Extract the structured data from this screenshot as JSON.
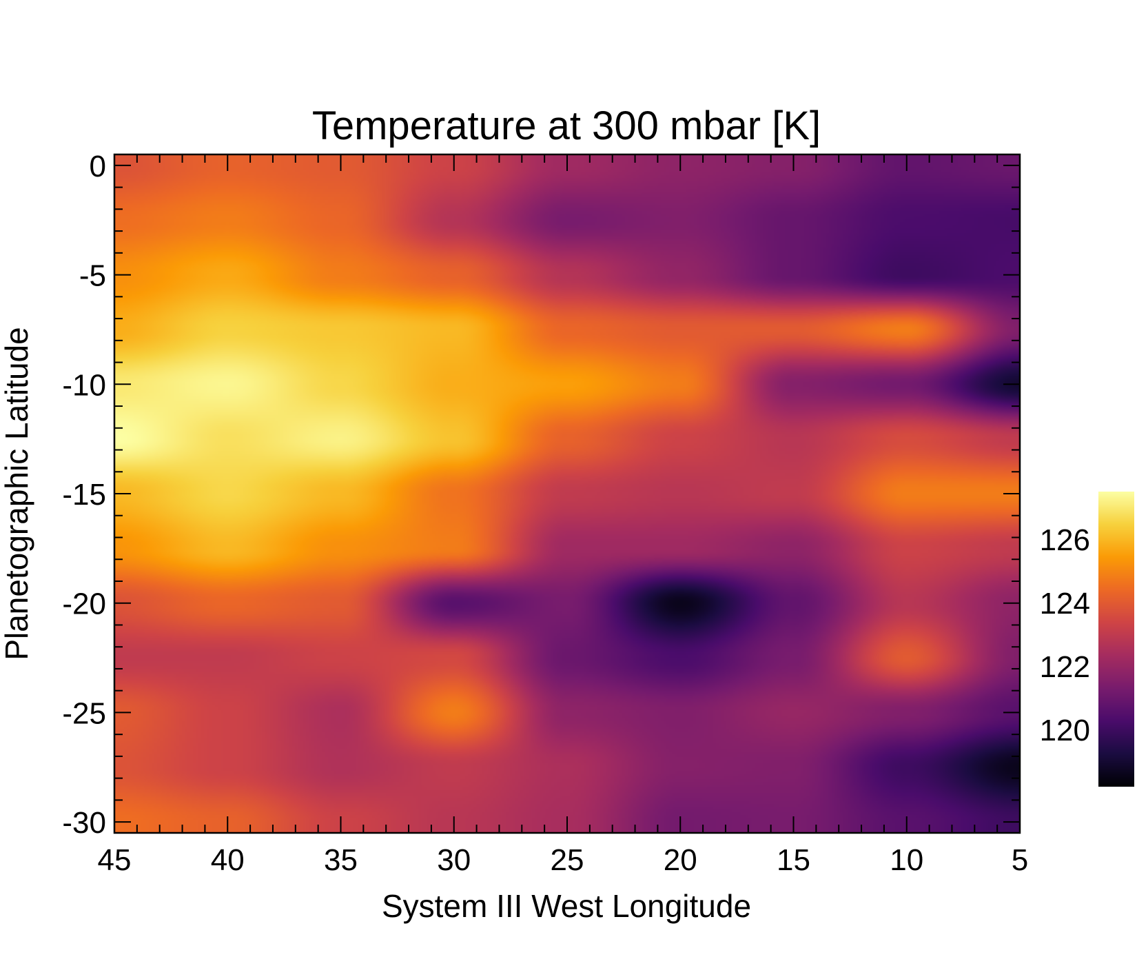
{
  "chart_data": {
    "type": "heatmap",
    "title": "Temperature at 300 mbar [K]",
    "xlabel": "System III West Longitude",
    "ylabel": "Planetographic Latitude",
    "xlim": [
      45,
      5
    ],
    "ylim": [
      -30.5,
      0.5
    ],
    "x_ticks": [
      45,
      40,
      35,
      30,
      25,
      20,
      15,
      10,
      5
    ],
    "y_ticks": [
      0,
      -5,
      -10,
      -15,
      -20,
      -25,
      -30
    ],
    "x_tick_labels": [
      "45",
      "40",
      "35",
      "30",
      "25",
      "20",
      "15",
      "10",
      "5"
    ],
    "y_tick_labels": [
      "0",
      "-5",
      "-10",
      "-15",
      "-20",
      "-25",
      "-30"
    ],
    "colorbar": {
      "range": [
        118.2,
        127.5
      ],
      "ticks": [
        120,
        122,
        124,
        126
      ],
      "tick_labels": [
        "120",
        "122",
        "124",
        "126"
      ],
      "colormap": "inferno",
      "stops": [
        "#000004",
        "#1b0c41",
        "#4a0c6b",
        "#781c6d",
        "#a52c60",
        "#cf4446",
        "#ed6925",
        "#fb9b06",
        "#f7d13d",
        "#fcffa4"
      ]
    },
    "grid": false,
    "longitudes": [
      45,
      40,
      35,
      30,
      25,
      20,
      15,
      10,
      5
    ],
    "latitudes": [
      0,
      -2.5,
      -5,
      -7.5,
      -10,
      -12.5,
      -15,
      -17.5,
      -20,
      -22.5,
      -25,
      -27.5,
      -30
    ],
    "values": [
      [
        123.8,
        124.2,
        124.0,
        123.3,
        122.2,
        121.8,
        121.6,
        120.8,
        121.0
      ],
      [
        124.5,
        124.8,
        124.3,
        122.7,
        121.3,
        121.5,
        120.9,
        120.3,
        120.2
      ],
      [
        125.2,
        125.7,
        124.8,
        124.2,
        122.7,
        121.9,
        120.9,
        120.0,
        120.3
      ],
      [
        125.8,
        126.5,
        126.3,
        126.0,
        124.3,
        124.0,
        124.0,
        124.8,
        121.5
      ],
      [
        127.0,
        127.3,
        126.6,
        125.8,
        125.5,
        124.8,
        121.6,
        121.2,
        119.0
      ],
      [
        127.5,
        126.8,
        127.2,
        126.2,
        124.2,
        123.3,
        122.8,
        123.6,
        123.0
      ],
      [
        126.0,
        126.6,
        126.0,
        124.6,
        123.0,
        122.8,
        123.0,
        124.8,
        124.8
      ],
      [
        125.3,
        126.0,
        125.2,
        124.8,
        122.2,
        122.2,
        121.8,
        123.3,
        123.0
      ],
      [
        123.8,
        124.3,
        124.0,
        120.6,
        121.3,
        118.6,
        120.8,
        122.8,
        121.8
      ],
      [
        123.0,
        123.0,
        123.3,
        123.5,
        121.0,
        120.3,
        121.3,
        124.0,
        121.5
      ],
      [
        124.0,
        123.3,
        122.5,
        124.8,
        121.8,
        121.5,
        122.0,
        121.5,
        120.6
      ],
      [
        123.8,
        123.3,
        122.6,
        123.0,
        122.5,
        121.6,
        121.5,
        120.0,
        118.6
      ],
      [
        124.5,
        124.2,
        123.3,
        122.8,
        122.4,
        121.2,
        121.3,
        120.6,
        120.0
      ]
    ]
  }
}
